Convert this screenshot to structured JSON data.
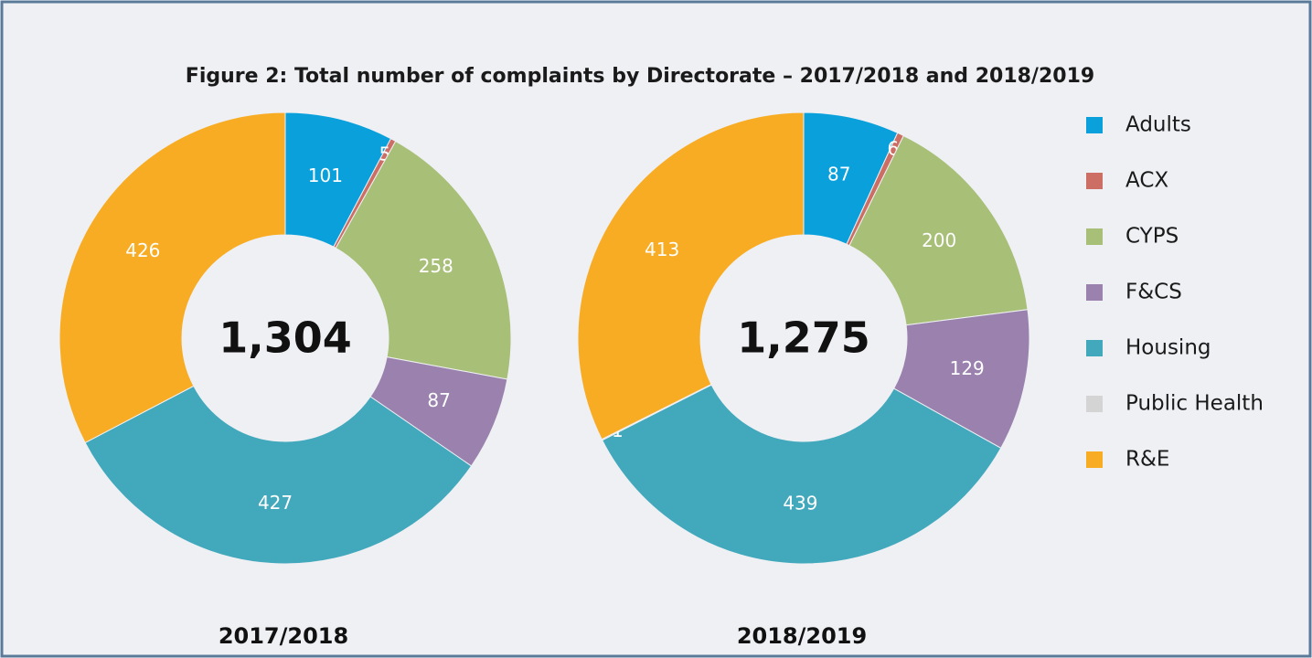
{
  "title": "Figure 2: Total number of complaints by Directorate – 2017/2018 and 2018/2019",
  "chart_data": [
    {
      "type": "pie",
      "label": "2017/2018",
      "center_label": "1,304",
      "categories": [
        "Adults",
        "ACX",
        "CYPS",
        "F&CS",
        "Housing",
        "Public Health",
        "R&E"
      ],
      "values": [
        101,
        5,
        258,
        87,
        427,
        0,
        426
      ],
      "colors": [
        "#0aa0dc",
        "#cd6e64",
        "#a8bf78",
        "#9b82ae",
        "#42a8bc",
        "#d4d4d4",
        "#f8ac24"
      ]
    },
    {
      "type": "pie",
      "label": "2018/2019",
      "center_label": "1,275",
      "categories": [
        "Adults",
        "ACX",
        "CYPS",
        "F&CS",
        "Housing",
        "Public Health",
        "R&E"
      ],
      "values": [
        87,
        6,
        200,
        129,
        439,
        1,
        413
      ],
      "colors": [
        "#0aa0dc",
        "#cd6e64",
        "#a8bf78",
        "#9b82ae",
        "#42a8bc",
        "#d4d4d4",
        "#f8ac24"
      ]
    }
  ],
  "legend": true
}
